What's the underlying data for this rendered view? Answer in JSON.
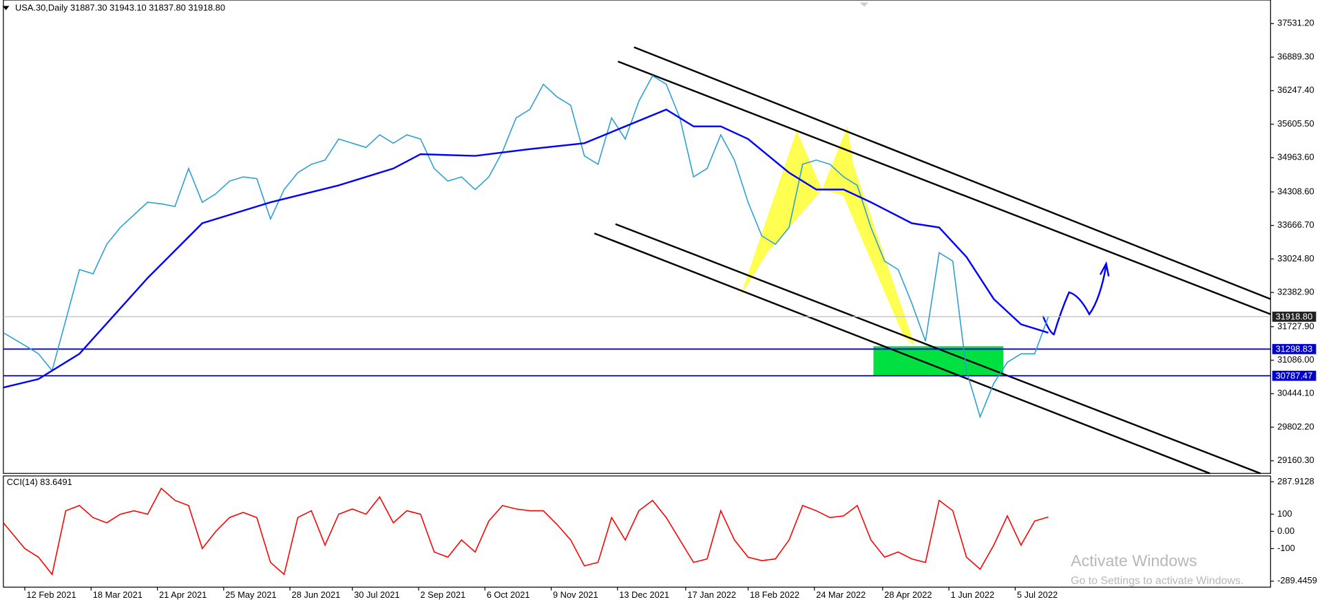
{
  "chart_data": [
    {
      "type": "line",
      "title": "USA.30,Daily  31887.30 31943.10 31837.80 31918.80",
      "x": [
        "2021-02-01",
        "2021-02-12",
        "2021-02-19",
        "2021-02-26",
        "2021-03-05",
        "2021-03-12",
        "2021-03-19",
        "2021-03-26",
        "2021-04-02",
        "2021-04-09",
        "2021-04-16",
        "2021-04-23",
        "2021-04-30",
        "2021-05-07",
        "2021-05-14",
        "2021-05-21",
        "2021-05-28",
        "2021-06-04",
        "2021-06-11",
        "2021-06-18",
        "2021-06-25",
        "2021-07-02",
        "2021-07-09",
        "2021-07-16",
        "2021-07-23",
        "2021-07-30",
        "2021-08-06",
        "2021-08-13",
        "2021-08-20",
        "2021-08-27",
        "2021-09-03",
        "2021-09-10",
        "2021-09-17",
        "2021-09-24",
        "2021-10-01",
        "2021-10-08",
        "2021-10-15",
        "2021-10-22",
        "2021-10-29",
        "2021-11-05",
        "2021-11-12",
        "2021-11-19",
        "2021-11-26",
        "2021-12-03",
        "2021-12-10",
        "2021-12-17",
        "2021-12-24",
        "2021-12-31",
        "2022-01-07",
        "2022-01-14",
        "2022-01-21",
        "2022-01-28",
        "2022-02-04",
        "2022-02-11",
        "2022-02-18",
        "2022-02-25",
        "2022-03-04",
        "2022-03-11",
        "2022-03-18",
        "2022-03-25",
        "2022-04-01",
        "2022-04-08",
        "2022-04-15",
        "2022-04-22",
        "2022-04-29",
        "2022-05-06",
        "2022-05-13",
        "2022-05-20",
        "2022-05-27",
        "2022-06-03",
        "2022-06-10",
        "2022-06-17",
        "2022-06-24",
        "2022-07-01",
        "2022-07-08",
        "2022-07-15",
        "2022-07-22"
      ],
      "series": [
        {
          "color": "#2a9fd6",
          "values": [
            31612,
            31370,
            31210,
            30886,
            31853,
            32821,
            32740,
            33305,
            33628,
            33870,
            34111,
            34080,
            34030,
            34757,
            34111,
            34273,
            34515,
            34596,
            34563,
            33789,
            34354,
            34676,
            34838,
            34918,
            35322,
            35241,
            35160,
            35402,
            35241,
            35402,
            35322,
            34757,
            34515,
            34596,
            34354,
            34596,
            35080,
            35725,
            35886,
            36370,
            36128,
            35967,
            34999,
            34838,
            35725,
            35322,
            36047,
            36531,
            36370,
            35725,
            34596,
            34757,
            35402,
            34918,
            34111,
            33466,
            33305,
            33628,
            34838,
            34918,
            34838,
            34596,
            34434,
            33628,
            32982,
            32821,
            32176,
            31450,
            33144,
            32982,
            30886,
            30000,
            30644,
            31047,
            31208,
            31208,
            31918.8
          ]
        },
        {
          "color": "#0000ff",
          "x": [
            "2021-02-01",
            "2021-02-19",
            "2021-03-12",
            "2021-04-16",
            "2021-05-14",
            "2021-06-18",
            "2021-07-23",
            "2021-08-20",
            "2021-09-03",
            "2021-10-01",
            "2021-10-29",
            "2021-11-26",
            "2021-12-17",
            "2022-01-07",
            "2022-01-21",
            "2022-02-04",
            "2022-02-18",
            "2022-03-11",
            "2022-03-25",
            "2022-04-08",
            "2022-04-22",
            "2022-05-13",
            "2022-05-27",
            "2022-06-10",
            "2022-06-24",
            "2022-07-08",
            "2022-07-22"
          ],
          "values": [
            30563,
            30725,
            31208,
            32660,
            33708,
            34111,
            34434,
            34757,
            35031,
            34999,
            35128,
            35241,
            35563,
            35886,
            35563,
            35563,
            35322,
            34676,
            34354,
            34354,
            34111,
            33708,
            33628,
            33063,
            32257,
            31773,
            31612
          ]
        }
      ],
      "xlim": [
        "2021-02-01",
        "2022-11-13"
      ],
      "xticks": [
        {
          "value": "2021-02-12",
          "label": "12 Feb 2021"
        },
        {
          "value": "2021-03-18",
          "label": "18 Mar 2021"
        },
        {
          "value": "2021-04-21",
          "label": "21 Apr 2021"
        },
        {
          "value": "2021-05-25",
          "label": "25 May 2021"
        },
        {
          "value": "2021-06-28",
          "label": "28 Jun 2021"
        },
        {
          "value": "2021-07-30",
          "label": "30 Jul 2021"
        },
        {
          "value": "2021-09-02",
          "label": "2 Sep 2021"
        },
        {
          "value": "2021-10-06",
          "label": "6 Oct 2021"
        },
        {
          "value": "2021-11-09",
          "label": "9 Nov 2021"
        },
        {
          "value": "2021-12-13",
          "label": "13 Dec 2021"
        },
        {
          "value": "2022-01-17",
          "label": "17 Jan 2022"
        },
        {
          "value": "2022-02-18",
          "label": "18 Feb 2022"
        },
        {
          "value": "2022-03-24",
          "label": "24 Mar 2022"
        },
        {
          "value": "2022-04-28",
          "label": "28 Apr 2022"
        },
        {
          "value": "2022-06-01",
          "label": "1 Jun 2022"
        },
        {
          "value": "2022-07-05",
          "label": "5 Jul 2022"
        }
      ],
      "ylim": [
        28918,
        37983
      ],
      "yticks": [
        {
          "value": 37531.2,
          "label": "37531.20"
        },
        {
          "value": 36889.3,
          "label": "36889.30"
        },
        {
          "value": 36247.4,
          "label": "36247.40"
        },
        {
          "value": 35605.5,
          "label": "35605.50"
        },
        {
          "value": 34963.6,
          "label": "34963.60"
        },
        {
          "value": 34308.6,
          "label": "34308.60"
        },
        {
          "value": 33666.7,
          "label": "33666.70"
        },
        {
          "value": 33024.8,
          "label": "33024.80"
        },
        {
          "value": 32382.9,
          "label": "32382.90"
        },
        {
          "value": 31727.9,
          "label": "31727.90"
        },
        {
          "value": 31086,
          "label": "31086.00"
        },
        {
          "value": 30444.1,
          "label": "30444.10"
        },
        {
          "value": 29802.2,
          "label": "29802.20"
        },
        {
          "value": 29160.3,
          "label": "29160.30"
        }
      ],
      "hlines": [
        {
          "value": 31298.83,
          "color": "#0000cd"
        },
        {
          "value": 30787.47,
          "color": "#0000cd"
        }
      ],
      "last_price": {
        "value": 31918.8,
        "label": "31918.80"
      }
    },
    {
      "type": "line",
      "title": "CCI(14) 83.6491",
      "x": [
        "2021-02-01",
        "2021-02-12",
        "2021-02-19",
        "2021-02-26",
        "2021-03-05",
        "2021-03-12",
        "2021-03-19",
        "2021-03-26",
        "2021-04-02",
        "2021-04-09",
        "2021-04-16",
        "2021-04-23",
        "2021-04-30",
        "2021-05-07",
        "2021-05-14",
        "2021-05-21",
        "2021-05-28",
        "2021-06-04",
        "2021-06-11",
        "2021-06-18",
        "2021-06-25",
        "2021-07-02",
        "2021-07-09",
        "2021-07-16",
        "2021-07-23",
        "2021-07-30",
        "2021-08-06",
        "2021-08-13",
        "2021-08-20",
        "2021-08-27",
        "2021-09-03",
        "2021-09-10",
        "2021-09-17",
        "2021-09-24",
        "2021-10-01",
        "2021-10-08",
        "2021-10-15",
        "2021-10-22",
        "2021-10-29",
        "2021-11-05",
        "2021-11-12",
        "2021-11-19",
        "2021-11-26",
        "2021-12-03",
        "2021-12-10",
        "2021-12-17",
        "2021-12-24",
        "2021-12-31",
        "2022-01-07",
        "2022-01-14",
        "2022-01-21",
        "2022-01-28",
        "2022-02-04",
        "2022-02-11",
        "2022-02-18",
        "2022-02-25",
        "2022-03-04",
        "2022-03-11",
        "2022-03-18",
        "2022-03-25",
        "2022-04-01",
        "2022-04-08",
        "2022-04-15",
        "2022-04-22",
        "2022-04-29",
        "2022-05-06",
        "2022-05-13",
        "2022-05-20",
        "2022-05-27",
        "2022-06-03",
        "2022-06-10",
        "2022-06-17",
        "2022-06-24",
        "2022-07-01",
        "2022-07-08",
        "2022-07-15",
        "2022-07-22"
      ],
      "series": [
        {
          "color": "#ff0000",
          "values": [
            50,
            -100,
            -150,
            -250,
            120,
            150,
            80,
            50,
            100,
            120,
            100,
            250,
            180,
            150,
            -100,
            0,
            80,
            110,
            80,
            -180,
            -250,
            80,
            120,
            -80,
            100,
            130,
            100,
            200,
            50,
            120,
            100,
            -120,
            -150,
            -50,
            -120,
            60,
            150,
            130,
            120,
            120,
            40,
            -50,
            -200,
            -180,
            80,
            -50,
            120,
            180,
            80,
            -50,
            -180,
            -160,
            120,
            -50,
            -150,
            -170,
            -160,
            -50,
            150,
            120,
            80,
            90,
            150,
            -50,
            -150,
            -120,
            -160,
            -180,
            180,
            120,
            -150,
            -220,
            -80,
            90,
            -80,
            60,
            83.6491
          ]
        }
      ],
      "ylim": [
        -324,
        322
      ],
      "yticks": [
        287.9128,
        100,
        {
          "value": 0,
          "label": "0.00"
        },
        -100,
        -289.4459
      ]
    }
  ],
  "watermark": [
    "Activate Windows",
    "Go to Settings to activate Windows."
  ]
}
